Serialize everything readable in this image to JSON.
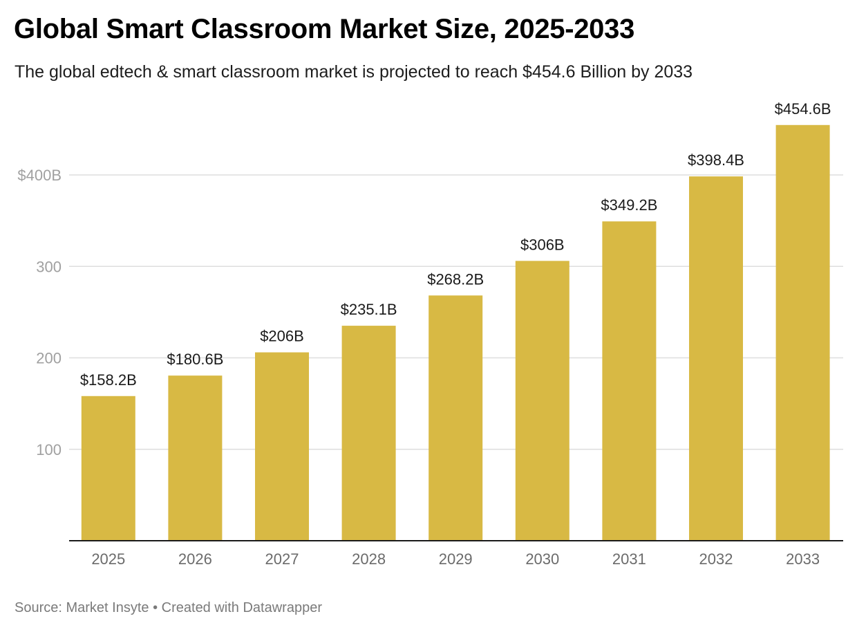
{
  "header": {
    "title": "Global Smart Classroom Market Size, 2025-2033",
    "subtitle": "The global edtech & smart classroom market is projected to reach $454.6 Billion by 2033"
  },
  "footer": {
    "source_label": "Source: ",
    "source_name": "Market Insyte",
    "separator": " • ",
    "credit": "Created with Datawrapper"
  },
  "colors": {
    "bar": "#d8b944",
    "gridline": "#dedede",
    "baseline": "#1a1a1a"
  },
  "chart_data": {
    "type": "bar",
    "title": "Global Smart Classroom Market Size, 2025-2033",
    "subtitle": "The global edtech & smart classroom market is projected to reach $454.6 Billion by 2033",
    "xlabel": "",
    "ylabel": "",
    "unit": "Billion USD",
    "categories": [
      "2025",
      "2026",
      "2027",
      "2028",
      "2029",
      "2030",
      "2031",
      "2032",
      "2033"
    ],
    "values": [
      158.2,
      180.6,
      206,
      235.1,
      268.2,
      306,
      349.2,
      398.4,
      454.6
    ],
    "value_labels": [
      "$158.2B",
      "$180.6B",
      "$206B",
      "$235.1B",
      "$268.2B",
      "$306B",
      "$349.2B",
      "$398.4B",
      "$454.6B"
    ],
    "ylim": [
      0,
      454.6
    ],
    "y_ticks": [
      100,
      200,
      300,
      400
    ],
    "y_tick_labels": [
      "100",
      "200",
      "300",
      "$400B"
    ],
    "grid": true,
    "legend": "none"
  }
}
